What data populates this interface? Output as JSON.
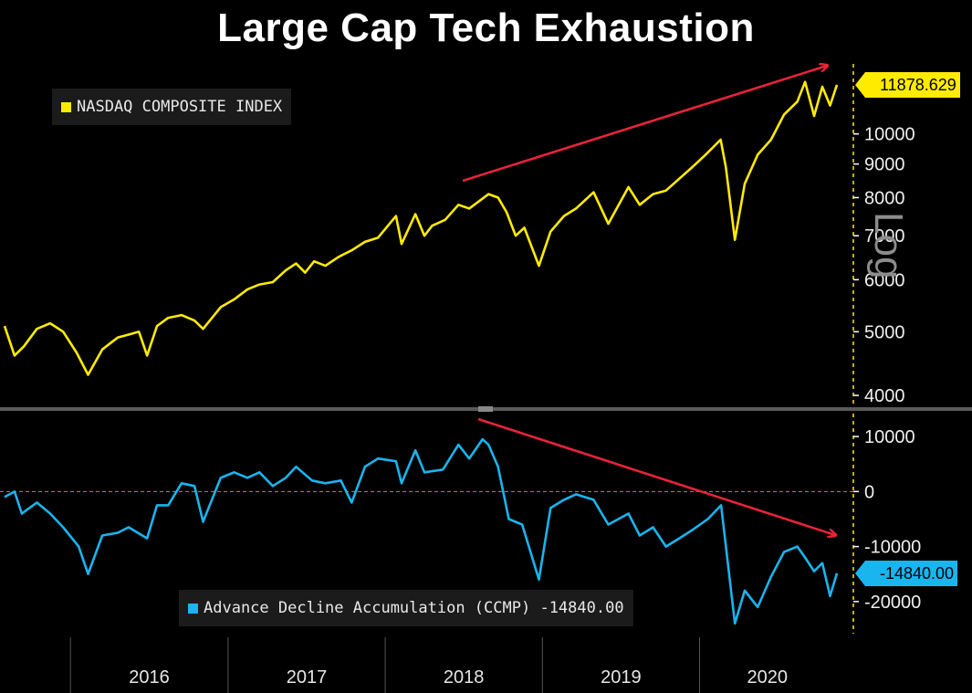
{
  "title": "Large Cap Tech Exhaustion",
  "scale_label": "Log",
  "colors": {
    "background": "#000000",
    "nasdaq": "#ffeb00",
    "ad_line": "#1ab4ee",
    "trend_arrow": "#e8233a",
    "zero_line": "#d9822b",
    "divider": "#5a5a5a"
  },
  "chart_data": [
    {
      "type": "line",
      "scale": "log",
      "ylim": [
        3850,
        12700
      ],
      "yticks": [
        4000,
        5000,
        6000,
        7000,
        8000,
        9000,
        10000
      ],
      "legend": {
        "label": "NASDAQ COMPOSITE INDEX",
        "placement": "top-left"
      },
      "last_value_label": "11878.629",
      "series": [
        {
          "name": "NASDAQ COMPOSITE INDEX",
          "x": [
            "2015-08-01",
            "2015-08-24",
            "2015-09-15",
            "2015-10-15",
            "2015-11-15",
            "2015-12-15",
            "2016-01-15",
            "2016-02-11",
            "2016-03-15",
            "2016-04-20",
            "2016-05-15",
            "2016-06-08",
            "2016-06-27",
            "2016-07-20",
            "2016-08-15",
            "2016-09-15",
            "2016-10-15",
            "2016-11-04",
            "2016-12-15",
            "2017-01-15",
            "2017-02-15",
            "2017-03-15",
            "2017-04-15",
            "2017-05-15",
            "2017-06-08",
            "2017-06-29",
            "2017-07-20",
            "2017-08-15",
            "2017-09-15",
            "2017-10-15",
            "2017-11-15",
            "2017-12-15",
            "2018-01-26",
            "2018-02-08",
            "2018-03-12",
            "2018-04-02",
            "2018-04-20",
            "2018-05-20",
            "2018-06-20",
            "2018-07-15",
            "2018-08-29",
            "2018-09-20",
            "2018-10-10",
            "2018-10-31",
            "2018-11-20",
            "2018-12-24",
            "2019-01-20",
            "2019-02-20",
            "2019-03-20",
            "2019-04-30",
            "2019-06-03",
            "2019-07-20",
            "2019-08-15",
            "2019-09-15",
            "2019-10-15",
            "2019-11-15",
            "2019-12-15",
            "2020-01-15",
            "2020-02-19",
            "2020-03-02",
            "2020-03-23",
            "2020-04-15",
            "2020-05-15",
            "2020-06-15",
            "2020-07-15",
            "2020-08-15",
            "2020-09-02",
            "2020-09-23",
            "2020-10-12",
            "2020-10-30",
            "2020-11-15"
          ],
          "values": [
            5100,
            4600,
            4750,
            5050,
            5150,
            5000,
            4650,
            4300,
            4700,
            4900,
            4950,
            5000,
            4600,
            5100,
            5250,
            5300,
            5200,
            5050,
            5450,
            5600,
            5800,
            5900,
            5950,
            6200,
            6350,
            6150,
            6400,
            6300,
            6500,
            6650,
            6850,
            6950,
            7500,
            6800,
            7550,
            7000,
            7250,
            7400,
            7800,
            7700,
            8100,
            8000,
            7600,
            7000,
            7200,
            6300,
            7100,
            7500,
            7700,
            8150,
            7300,
            8300,
            7800,
            8100,
            8200,
            8550,
            8900,
            9300,
            9800,
            8900,
            6900,
            8400,
            9300,
            9800,
            10700,
            11200,
            12000,
            10650,
            11800,
            11050,
            11879
          ]
        }
      ]
    },
    {
      "type": "line",
      "ylim": [
        -26500,
        14500
      ],
      "yticks": [
        10000,
        0,
        -10000,
        -20000
      ],
      "reference_line": 0,
      "legend": {
        "label": "Advance Decline Accumulation (CCMP) -14840.00",
        "placement": "bottom-left"
      },
      "last_value_label": "-14840.00",
      "series": [
        {
          "name": "Advance Decline Accumulation (CCMP)",
          "x": [
            "2015-08-01",
            "2015-08-24",
            "2015-09-10",
            "2015-10-15",
            "2015-11-15",
            "2015-12-15",
            "2016-01-20",
            "2016-02-11",
            "2016-03-15",
            "2016-04-20",
            "2016-05-15",
            "2016-06-27",
            "2016-07-20",
            "2016-08-15",
            "2016-09-15",
            "2016-10-15",
            "2016-11-04",
            "2016-12-15",
            "2017-01-15",
            "2017-02-15",
            "2017-03-15",
            "2017-04-15",
            "2017-05-15",
            "2017-06-08",
            "2017-07-15",
            "2017-08-15",
            "2017-09-20",
            "2017-10-15",
            "2017-11-15",
            "2017-12-15",
            "2018-01-26",
            "2018-02-08",
            "2018-03-12",
            "2018-04-02",
            "2018-05-15",
            "2018-06-20",
            "2018-07-15",
            "2018-08-15",
            "2018-08-29",
            "2018-09-20",
            "2018-10-15",
            "2018-11-15",
            "2018-12-24",
            "2019-01-20",
            "2019-02-20",
            "2019-03-20",
            "2019-04-30",
            "2019-06-03",
            "2019-07-20",
            "2019-08-15",
            "2019-09-15",
            "2019-10-15",
            "2019-11-15",
            "2019-12-15",
            "2020-01-20",
            "2020-02-20",
            "2020-03-23",
            "2020-04-15",
            "2020-05-15",
            "2020-06-15",
            "2020-07-15",
            "2020-08-15",
            "2020-09-02",
            "2020-09-23",
            "2020-10-12",
            "2020-10-30",
            "2020-11-15"
          ],
          "values": [
            -1000,
            0,
            -4000,
            -2000,
            -4000,
            -6500,
            -10000,
            -15000,
            -8000,
            -7500,
            -6500,
            -8500,
            -2500,
            -2500,
            1500,
            1000,
            -5500,
            2500,
            3500,
            2500,
            3500,
            1000,
            2500,
            4500,
            2000,
            1500,
            2000,
            -2000,
            4500,
            6000,
            5500,
            1500,
            7500,
            3500,
            4000,
            8500,
            6000,
            9500,
            8500,
            4500,
            -5000,
            -6000,
            -16000,
            -3000,
            -1500,
            -500,
            -1500,
            -6000,
            -4000,
            -8000,
            -6500,
            -10000,
            -8500,
            -7000,
            -5000,
            -2500,
            -24000,
            -18000,
            -21000,
            -15500,
            -11000,
            -10000,
            -12000,
            -14500,
            -13000,
            -19000,
            -14840
          ]
        }
      ]
    }
  ],
  "x_axis": {
    "labels": [
      "2016",
      "2017",
      "2018",
      "2019",
      "2020"
    ]
  }
}
